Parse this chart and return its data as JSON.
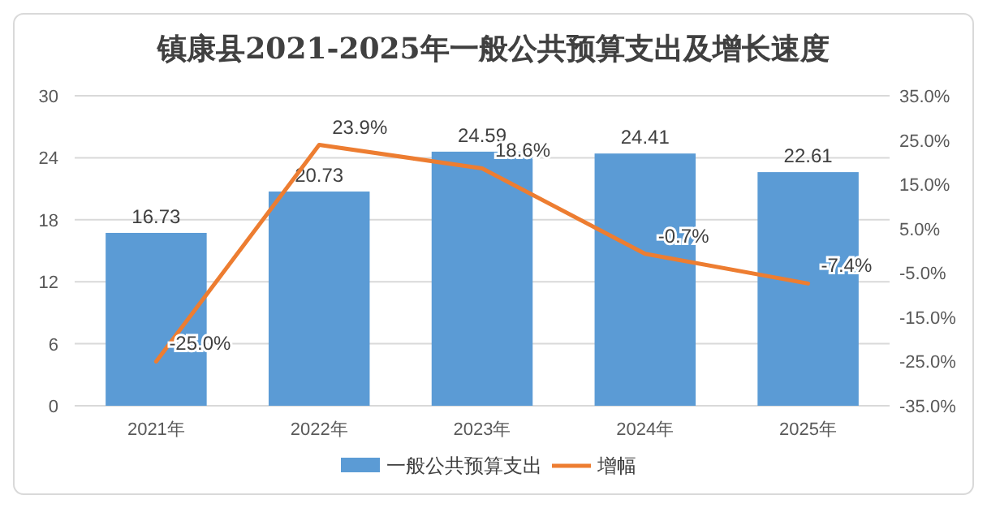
{
  "chart_data": {
    "type": "bar",
    "title": "镇康县2021-2025年一般公共预算支出及增长速度",
    "categories": [
      "2021年",
      "2022年",
      "2023年",
      "2024年",
      "2025年"
    ],
    "series": [
      {
        "name": "一般公共预算支出",
        "color": "#5b9bd5",
        "values": [
          16.73,
          20.73,
          24.59,
          24.41,
          22.61
        ],
        "value_labels": [
          "16.73",
          "20.73",
          "24.59",
          "24.41",
          "22.61"
        ]
      },
      {
        "name": "增幅",
        "type": "line",
        "axis": "y2",
        "color": "#ed7d31",
        "values": [
          -25.0,
          23.9,
          18.6,
          -0.7,
          -7.4
        ],
        "value_labels": [
          "-25.0%",
          "23.9%",
          "18.6%",
          "-0.7%",
          "-7.4%"
        ]
      }
    ],
    "ylim": [
      0,
      30
    ],
    "yticks": [
      0,
      6,
      12,
      18,
      24,
      30
    ],
    "y2lim": [
      -35,
      35
    ],
    "y2ticks": [
      {
        "value": -35,
        "label": "-35.0%"
      },
      {
        "value": -25,
        "label": "-25.0%"
      },
      {
        "value": -15,
        "label": "-15.0%"
      },
      {
        "value": -5,
        "label": "-5.0%"
      },
      {
        "value": 5,
        "label": "5.0%"
      },
      {
        "value": 15,
        "label": "15.0%"
      },
      {
        "value": 25,
        "label": "25.0%"
      },
      {
        "value": 35,
        "label": "35.0%"
      }
    ],
    "grid": "y",
    "legend": "bottom",
    "marker": "none",
    "line_style": "solid"
  }
}
